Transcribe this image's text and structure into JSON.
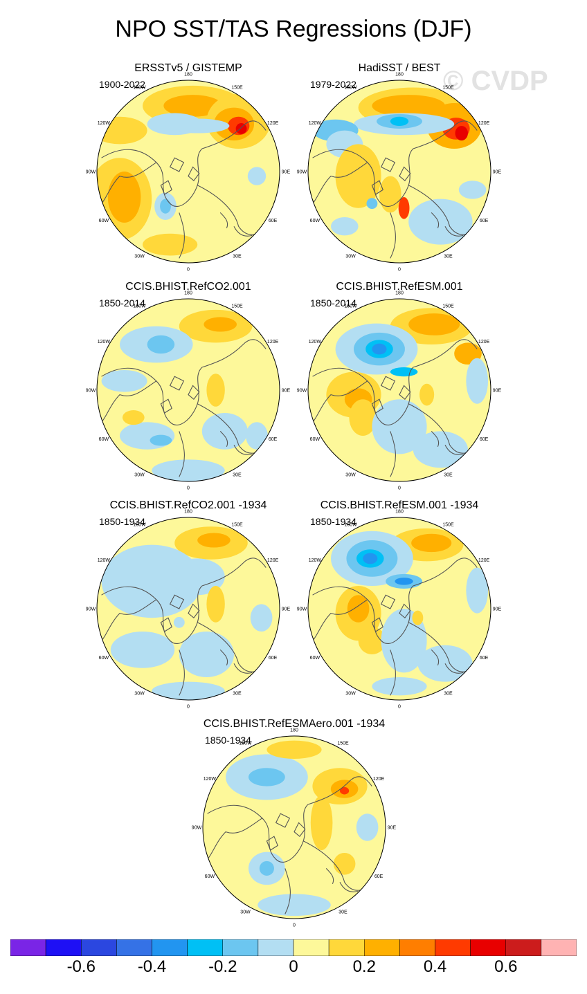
{
  "title": "NPO SST/TAS Regressions (DJF)",
  "watermark": "© CVDP",
  "lon_labels": [
    "180",
    "150E",
    "120E",
    "90E",
    "60E",
    "30E",
    "0",
    "30W",
    "60W",
    "90W",
    "120W",
    "150W"
  ],
  "panels": [
    {
      "title": "ERSSTv5 / GISTEMP",
      "years": "1900-2022",
      "pattern": "obs1"
    },
    {
      "title": "HadiSST / BEST",
      "years": "1979-2022",
      "pattern": "obs2"
    },
    {
      "title": "CCIS.BHIST.RefCO2.001",
      "years": "1850-2014",
      "pattern": "co2"
    },
    {
      "title": "CCIS.BHIST.RefESM.001",
      "years": "1850-2014",
      "pattern": "esm"
    },
    {
      "title": "CCIS.BHIST.RefCO2.001 -1934",
      "years": "1850-1934",
      "pattern": "co2b"
    },
    {
      "title": "CCIS.BHIST.RefESM.001 -1934",
      "years": "1850-1934",
      "pattern": "esmb"
    },
    {
      "title": "CCIS.BHIST.RefESMAero.001 -1934",
      "years": "1850-1934",
      "pattern": "aero"
    }
  ],
  "chart_data": {
    "type": "heatmap",
    "projection": "north-polar-stereographic",
    "season": "DJF",
    "variables": [
      "SST",
      "TAS"
    ],
    "colorbar": {
      "colors": [
        "#7a25e6",
        "#1e10f5",
        "#2b47e0",
        "#3572e6",
        "#2295f0",
        "#00c0f5",
        "#6cc6f0",
        "#b3def2",
        "#fdf89a",
        "#ffd83a",
        "#ffb000",
        "#ff7e00",
        "#ff3a00",
        "#e80000",
        "#cc1c1c",
        "#ffb3b3"
      ],
      "tick_labels": [
        "-0.6",
        "-0.4",
        "-0.2",
        "0",
        "0.2",
        "0.4",
        "0.6"
      ],
      "tick_values": [
        -0.6,
        -0.4,
        -0.2,
        0,
        0.2,
        0.4,
        0.6
      ],
      "levels": [
        -0.7,
        -0.6,
        -0.5,
        -0.4,
        -0.3,
        -0.2,
        -0.1,
        0,
        0.1,
        0.2,
        0.3,
        0.4,
        0.5,
        0.6,
        0.7
      ]
    }
  }
}
